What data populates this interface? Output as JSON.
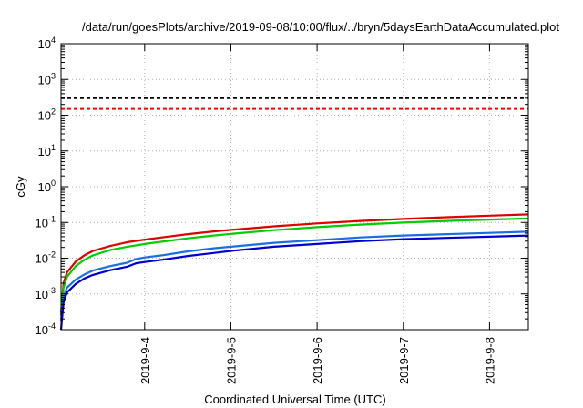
{
  "chart_data": {
    "type": "line",
    "title": "/data/run/goesPlots/archive/2019-09-08/10:00/flux/../bryn/5daysEarthDataAccumulated.plot",
    "xlabel": "Coordinated Universal Time (UTC)",
    "ylabel": "cGy",
    "yscale": "log",
    "ylim_exponents": [
      -4,
      4
    ],
    "xlim_days": [
      3.03,
      8.45
    ],
    "grid": true,
    "y_ticks": [
      {
        "base": "10",
        "exp": "-4"
      },
      {
        "base": "10",
        "exp": "-3"
      },
      {
        "base": "10",
        "exp": "-2"
      },
      {
        "base": "10",
        "exp": "-1"
      },
      {
        "base": "10",
        "exp": "0"
      },
      {
        "base": "10",
        "exp": "1"
      },
      {
        "base": "10",
        "exp": "2"
      },
      {
        "base": "10",
        "exp": "3"
      },
      {
        "base": "10",
        "exp": "4"
      }
    ],
    "x_ticks": [
      {
        "day": 4,
        "label": "2019-9-4"
      },
      {
        "day": 5,
        "label": "2019-9-5"
      },
      {
        "day": 6,
        "label": "2019-9-6"
      },
      {
        "day": 7,
        "label": "2019-9-7"
      },
      {
        "day": 8,
        "label": "2019-9-8"
      }
    ],
    "thresholds": [
      {
        "value": 300,
        "color": "#000000"
      },
      {
        "value": 150,
        "color": "#ff0000"
      }
    ],
    "series": [
      {
        "color": "#dd0000",
        "points": [
          [
            3.03,
            0.0003
          ],
          [
            3.06,
            0.002
          ],
          [
            3.1,
            0.004
          ],
          [
            3.2,
            0.008
          ],
          [
            3.3,
            0.012
          ],
          [
            3.4,
            0.016
          ],
          [
            3.6,
            0.022
          ],
          [
            3.8,
            0.028
          ],
          [
            4.0,
            0.033
          ],
          [
            4.2,
            0.038
          ],
          [
            4.5,
            0.047
          ],
          [
            4.8,
            0.056
          ],
          [
            5.0,
            0.062
          ],
          [
            5.5,
            0.078
          ],
          [
            6.0,
            0.094
          ],
          [
            6.5,
            0.11
          ],
          [
            7.0,
            0.125
          ],
          [
            7.5,
            0.14
          ],
          [
            8.0,
            0.155
          ],
          [
            8.45,
            0.168
          ]
        ]
      },
      {
        "color": "#00cc00",
        "points": [
          [
            3.03,
            0.00025
          ],
          [
            3.06,
            0.0015
          ],
          [
            3.1,
            0.003
          ],
          [
            3.2,
            0.006
          ],
          [
            3.3,
            0.009
          ],
          [
            3.4,
            0.012
          ],
          [
            3.6,
            0.017
          ],
          [
            3.8,
            0.021
          ],
          [
            4.0,
            0.025
          ],
          [
            4.2,
            0.029
          ],
          [
            4.5,
            0.036
          ],
          [
            4.8,
            0.043
          ],
          [
            5.0,
            0.048
          ],
          [
            5.5,
            0.061
          ],
          [
            6.0,
            0.074
          ],
          [
            6.5,
            0.087
          ],
          [
            7.0,
            0.099
          ],
          [
            7.5,
            0.11
          ],
          [
            8.0,
            0.12
          ],
          [
            8.45,
            0.13
          ]
        ]
      },
      {
        "color": "#1a6fe0",
        "points": [
          [
            3.03,
            0.00018
          ],
          [
            3.06,
            0.0008
          ],
          [
            3.1,
            0.0015
          ],
          [
            3.2,
            0.0025
          ],
          [
            3.3,
            0.0035
          ],
          [
            3.4,
            0.0045
          ],
          [
            3.6,
            0.006
          ],
          [
            3.8,
            0.0075
          ],
          [
            3.9,
            0.0095
          ],
          [
            4.0,
            0.0105
          ],
          [
            4.2,
            0.012
          ],
          [
            4.5,
            0.0155
          ],
          [
            4.8,
            0.019
          ],
          [
            5.0,
            0.021
          ],
          [
            5.5,
            0.027
          ],
          [
            6.0,
            0.032
          ],
          [
            6.5,
            0.038
          ],
          [
            7.0,
            0.043
          ],
          [
            7.5,
            0.047
          ],
          [
            8.0,
            0.051
          ],
          [
            8.45,
            0.055
          ]
        ]
      },
      {
        "color": "#0000cc",
        "points": [
          [
            3.03,
            0.0001
          ],
          [
            3.06,
            0.0006
          ],
          [
            3.1,
            0.0011
          ],
          [
            3.2,
            0.0019
          ],
          [
            3.3,
            0.0027
          ],
          [
            3.4,
            0.0034
          ],
          [
            3.6,
            0.0046
          ],
          [
            3.8,
            0.0058
          ],
          [
            3.9,
            0.0072
          ],
          [
            4.0,
            0.0078
          ],
          [
            4.2,
            0.009
          ],
          [
            4.5,
            0.0115
          ],
          [
            4.8,
            0.014
          ],
          [
            5.0,
            0.016
          ],
          [
            5.5,
            0.021
          ],
          [
            6.0,
            0.025
          ],
          [
            6.5,
            0.03
          ],
          [
            7.0,
            0.034
          ],
          [
            7.5,
            0.037
          ],
          [
            8.0,
            0.04
          ],
          [
            8.45,
            0.043
          ]
        ]
      }
    ]
  }
}
